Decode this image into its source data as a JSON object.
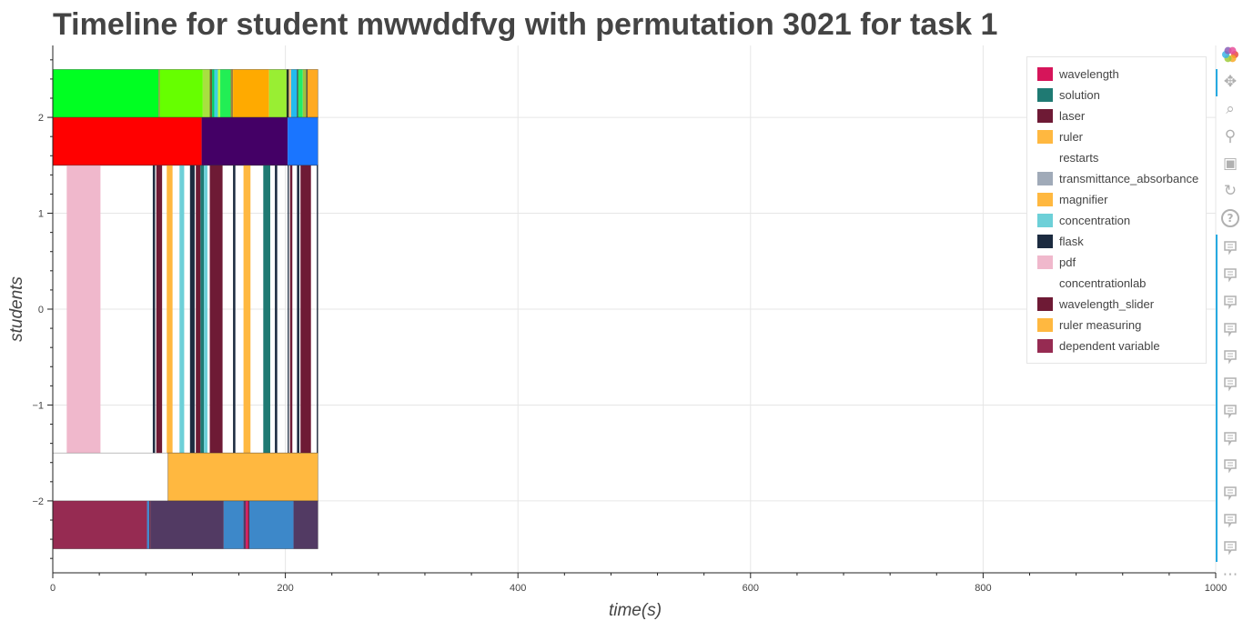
{
  "page": {
    "title": "Timeline for student mwwddfvg with permutation 3021 for task 1"
  },
  "chart_data": {
    "type": "bar",
    "orientation": "horizontal-timeline",
    "title": "Timeline for student mwwddfvg with permutation 3021 for task 1",
    "xlabel": "time(s)",
    "ylabel": "students",
    "xlim": [
      0,
      1000
    ],
    "ylim": [
      -2.75,
      2.75
    ],
    "x_ticks": [
      0,
      200,
      400,
      600,
      800,
      1000
    ],
    "x_tick_labels": [
      "0",
      "200",
      "400",
      "600",
      "800",
      "1000"
    ],
    "y_ticks": [
      -2,
      -1,
      0,
      1,
      2
    ],
    "y_tick_labels": [
      "−2",
      "−1",
      "0",
      "1",
      "2"
    ],
    "grid": true,
    "legend_position": "top-right",
    "legend": [
      {
        "label": "wavelength",
        "color": "#d6155a"
      },
      {
        "label": "solution",
        "color": "#1f7a73"
      },
      {
        "label": "laser",
        "color": "#6e1a35"
      },
      {
        "label": "ruler",
        "color": "#ffb840"
      },
      {
        "label": "restarts",
        "color": null
      },
      {
        "label": "transmittance_absorbance",
        "color": "#a0aab8"
      },
      {
        "label": "magnifier",
        "color": "#ffb840"
      },
      {
        "label": "concentration",
        "color": "#6dd0d8"
      },
      {
        "label": "flask",
        "color": "#1c2b40"
      },
      {
        "label": "pdf",
        "color": "#f0b8cc"
      },
      {
        "label": "concentrationlab",
        "color": null
      },
      {
        "label": "wavelength_slider",
        "color": "#6e1a35"
      },
      {
        "label": "ruler measuring",
        "color": "#ffb840"
      },
      {
        "label": "dependent variable",
        "color": "#962b52"
      }
    ],
    "rows": [
      {
        "y0": 2.0,
        "y1": 2.5,
        "segments": [
          {
            "start": 0,
            "end": 91,
            "color": "#00ff22"
          },
          {
            "start": 91,
            "end": 92,
            "color": "#a08040"
          },
          {
            "start": 92,
            "end": 129,
            "color": "#66ff00"
          },
          {
            "start": 129,
            "end": 135,
            "color": "#a8e040"
          },
          {
            "start": 135,
            "end": 137,
            "color": "#706030"
          },
          {
            "start": 137,
            "end": 139,
            "color": "#00cc66"
          },
          {
            "start": 139,
            "end": 142,
            "color": "#40d0e0"
          },
          {
            "start": 142,
            "end": 144,
            "color": "#b0ff40"
          },
          {
            "start": 144,
            "end": 153,
            "color": "#22ee55"
          },
          {
            "start": 153,
            "end": 155,
            "color": "#a08040"
          },
          {
            "start": 155,
            "end": 186,
            "color": "#ffaa00"
          },
          {
            "start": 186,
            "end": 201,
            "color": "#99ee33"
          },
          {
            "start": 201,
            "end": 203,
            "color": "#223322"
          },
          {
            "start": 203,
            "end": 205,
            "color": "#f0c080"
          },
          {
            "start": 205,
            "end": 210,
            "color": "#22bbee"
          },
          {
            "start": 210,
            "end": 211,
            "color": "#333333"
          },
          {
            "start": 211,
            "end": 215,
            "color": "#22ee66"
          },
          {
            "start": 215,
            "end": 218,
            "color": "#a0c040"
          },
          {
            "start": 218,
            "end": 219,
            "color": "#333333"
          },
          {
            "start": 219,
            "end": 228,
            "color": "#ffaa22"
          }
        ]
      },
      {
        "y0": 1.5,
        "y1": 2.0,
        "segments": [
          {
            "start": 0,
            "end": 128,
            "color": "#ff0000"
          },
          {
            "start": 128,
            "end": 202,
            "color": "#440066"
          },
          {
            "start": 202,
            "end": 228,
            "color": "#1a75ff"
          }
        ]
      },
      {
        "y0": -1.5,
        "y1": 1.5,
        "segments": [
          {
            "start": 12,
            "end": 41,
            "color": "#f0b8cc"
          },
          {
            "start": 86,
            "end": 88,
            "color": "#1c2b40"
          },
          {
            "start": 89,
            "end": 94,
            "color": "#6e1a35"
          },
          {
            "start": 98,
            "end": 103,
            "color": "#ffb840"
          },
          {
            "start": 109,
            "end": 113,
            "color": "#6dd0d8"
          },
          {
            "start": 118,
            "end": 122,
            "color": "#1c2b40"
          },
          {
            "start": 123,
            "end": 127,
            "color": "#6e1a35"
          },
          {
            "start": 127,
            "end": 130,
            "color": "#1f7a73"
          },
          {
            "start": 130,
            "end": 133,
            "color": "#6dd0d8"
          },
          {
            "start": 135,
            "end": 146,
            "color": "#6e1a35"
          },
          {
            "start": 155,
            "end": 157,
            "color": "#1c2b40"
          },
          {
            "start": 164,
            "end": 170,
            "color": "#ffb840"
          },
          {
            "start": 181,
            "end": 187,
            "color": "#1f7a73"
          },
          {
            "start": 191,
            "end": 193,
            "color": "#1c2b40"
          },
          {
            "start": 202,
            "end": 203,
            "color": "#1c2b40"
          },
          {
            "start": 204,
            "end": 206,
            "color": "#6e1a35"
          },
          {
            "start": 210,
            "end": 212,
            "color": "#1c2b40"
          },
          {
            "start": 213,
            "end": 222,
            "color": "#6e1a35"
          },
          {
            "start": 227,
            "end": 228,
            "color": "#1c2b40"
          }
        ]
      },
      {
        "y0": -2.0,
        "y1": -1.5,
        "segments": [
          {
            "start": 99,
            "end": 228,
            "color": "#ffb840"
          }
        ]
      },
      {
        "y0": -2.5,
        "y1": -2.0,
        "segments": [
          {
            "start": 0,
            "end": 81,
            "color": "#962b52"
          },
          {
            "start": 81,
            "end": 83,
            "color": "#4488cc"
          },
          {
            "start": 83,
            "end": 84,
            "color": "#6e1a35"
          },
          {
            "start": 84,
            "end": 147,
            "color": "#523a63"
          },
          {
            "start": 147,
            "end": 164,
            "color": "#3d88c9"
          },
          {
            "start": 164,
            "end": 166,
            "color": "#523a63"
          },
          {
            "start": 166,
            "end": 168,
            "color": "#d6155a"
          },
          {
            "start": 168,
            "end": 169,
            "color": "#6e1a35"
          },
          {
            "start": 169,
            "end": 207,
            "color": "#3d88c9"
          },
          {
            "start": 207,
            "end": 228,
            "color": "#523a63"
          }
        ]
      }
    ]
  },
  "toolbar": {
    "tools": [
      {
        "name": "bokeh-logo-icon"
      },
      {
        "name": "pan-icon"
      },
      {
        "name": "box-zoom-icon"
      },
      {
        "name": "wheel-zoom-icon"
      },
      {
        "name": "save-icon"
      },
      {
        "name": "reset-icon"
      },
      {
        "name": "help-icon"
      },
      {
        "name": "hover-icon"
      },
      {
        "name": "hover-icon"
      },
      {
        "name": "hover-icon"
      },
      {
        "name": "hover-icon"
      },
      {
        "name": "hover-icon"
      },
      {
        "name": "hover-icon"
      },
      {
        "name": "hover-icon"
      },
      {
        "name": "hover-icon"
      },
      {
        "name": "hover-icon"
      },
      {
        "name": "hover-icon"
      },
      {
        "name": "hover-icon"
      },
      {
        "name": "hover-icon"
      },
      {
        "name": "more-icon"
      }
    ]
  }
}
